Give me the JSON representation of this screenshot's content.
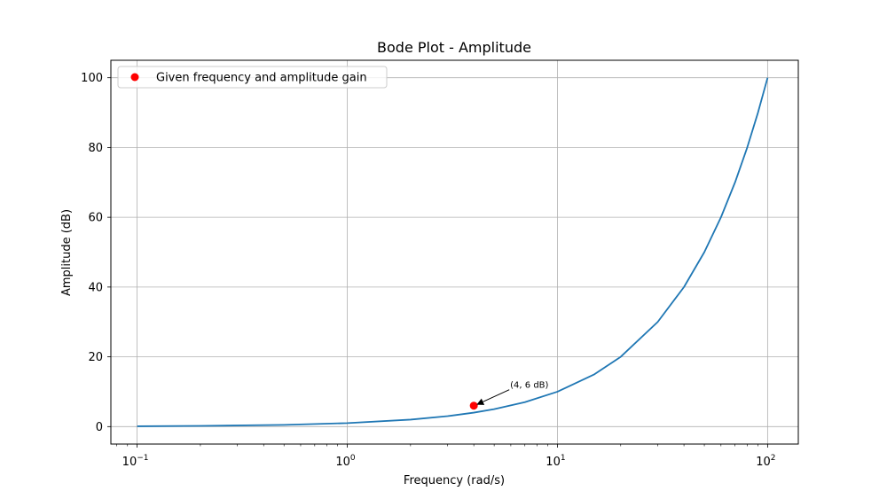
{
  "chart_data": {
    "type": "line",
    "title": "Bode Plot - Amplitude",
    "xlabel": "Frequency (rad/s)",
    "ylabel": "Amplitude (dB)",
    "xscale": "log",
    "xlim": [
      0.075,
      140
    ],
    "ylim": [
      -5,
      105
    ],
    "grid": true,
    "x_ticks": [
      {
        "value": 0.1,
        "base": "10",
        "exp": "−1"
      },
      {
        "value": 1,
        "base": "10",
        "exp": "0"
      },
      {
        "value": 10,
        "base": "10",
        "exp": "1"
      },
      {
        "value": 100,
        "base": "10",
        "exp": "2"
      }
    ],
    "y_ticks": [
      0,
      20,
      40,
      60,
      80,
      100
    ],
    "line_color": "#1f77b4",
    "marker_color": "#ff0000",
    "series": [
      {
        "x": [
          0.1,
          0.2,
          0.5,
          1,
          2,
          3,
          4,
          5,
          7,
          10,
          15,
          20,
          30,
          40,
          50,
          60,
          70,
          80,
          90,
          100
        ],
        "y": [
          0.1,
          0.2,
          0.5,
          1,
          2,
          3,
          4,
          5,
          7,
          10,
          15,
          20,
          30,
          40,
          50,
          60,
          70,
          80,
          90,
          100
        ]
      }
    ],
    "points": [
      {
        "name": "Given frequency and amplitude gain",
        "x": 4,
        "y": 6
      }
    ],
    "annotations": [
      {
        "text": "(4, 6 dB)",
        "x": 4,
        "y": 6
      }
    ],
    "legend": {
      "position": "top-left",
      "entries": [
        {
          "label": "Given frequency and amplitude gain",
          "color": "#ff0000",
          "marker": "circle"
        }
      ]
    }
  }
}
